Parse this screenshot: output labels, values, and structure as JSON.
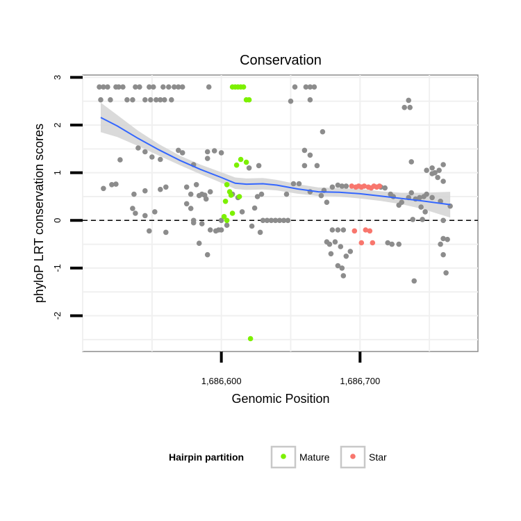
{
  "chart_data": {
    "type": "scatter",
    "title": "Conservation",
    "xlabel": "Genomic Position",
    "ylabel": "phyloP LRT conservation scores",
    "xlim": [
      1686500,
      1686785
    ],
    "ylim": [
      -2.75,
      3.05
    ],
    "x_ticks": [
      {
        "value": 1686600,
        "label": "1,686,600"
      },
      {
        "value": 1686700,
        "label": "1,686,700"
      }
    ],
    "y_ticks": [
      {
        "value": -2,
        "label": "-2"
      },
      {
        "value": -1,
        "label": "-1"
      },
      {
        "value": 0,
        "label": "0"
      },
      {
        "value": 1,
        "label": "1"
      },
      {
        "value": 2,
        "label": "2"
      },
      {
        "value": 3,
        "label": "3"
      }
    ],
    "grid": true,
    "reference_line": {
      "y": 0,
      "style": "dashed"
    },
    "legend": {
      "title": "Hairpin partition",
      "position": "bottom",
      "entries": [
        {
          "name": "Mature",
          "color": "#7cf000"
        },
        {
          "name": "Star",
          "color": "#f8766d"
        }
      ]
    },
    "colors": {
      "background_points": "#8c8c8c",
      "trend": "#3366ff",
      "band": "#d3d3d3"
    },
    "series": [
      {
        "name": "Mature",
        "color": "#7cf000",
        "points": [
          [
            1686608,
            2.8
          ],
          [
            1686610,
            2.8
          ],
          [
            1686612,
            2.8
          ],
          [
            1686614,
            2.8
          ],
          [
            1686616,
            2.8
          ],
          [
            1686618,
            2.53
          ],
          [
            1686620,
            2.53
          ],
          [
            1686611,
            1.16
          ],
          [
            1686614,
            1.28
          ],
          [
            1686618,
            1.22
          ],
          [
            1686604,
            0.75
          ],
          [
            1686606,
            0.6
          ],
          [
            1686607,
            0.53
          ],
          [
            1686603,
            0.4
          ],
          [
            1686608,
            0.15
          ],
          [
            1686613,
            0.5
          ],
          [
            1686602,
            0.08
          ],
          [
            1686604,
            0.0
          ],
          [
            1686621,
            -2.48
          ]
        ]
      },
      {
        "name": "Star",
        "color": "#f8766d",
        "points": [
          [
            1686694,
            0.72
          ],
          [
            1686697,
            0.7
          ],
          [
            1686699,
            0.72
          ],
          [
            1686701,
            0.7
          ],
          [
            1686703,
            0.72
          ],
          [
            1686706,
            0.7
          ],
          [
            1686708,
            0.68
          ],
          [
            1686710,
            0.72
          ],
          [
            1686712,
            0.7
          ],
          [
            1686714,
            0.72
          ],
          [
            1686696,
            -0.22
          ],
          [
            1686701,
            -0.47
          ],
          [
            1686704,
            -0.2
          ],
          [
            1686707,
            -0.22
          ],
          [
            1686709,
            -0.47
          ]
        ]
      },
      {
        "name": "",
        "color": "#8c8c8c",
        "points": [
          [
            1686512,
            2.8
          ],
          [
            1686515,
            2.8
          ],
          [
            1686518,
            2.8
          ],
          [
            1686524,
            2.8
          ],
          [
            1686526,
            2.8
          ],
          [
            1686529,
            2.8
          ],
          [
            1686538,
            2.8
          ],
          [
            1686541,
            2.8
          ],
          [
            1686548,
            2.8
          ],
          [
            1686551,
            2.8
          ],
          [
            1686558,
            2.8
          ],
          [
            1686562,
            2.8
          ],
          [
            1686566,
            2.8
          ],
          [
            1686569,
            2.8
          ],
          [
            1686572,
            2.8
          ],
          [
            1686591,
            2.8
          ],
          [
            1686653,
            2.8
          ],
          [
            1686661,
            2.8
          ],
          [
            1686664,
            2.8
          ],
          [
            1686667,
            2.8
          ],
          [
            1686513,
            2.53
          ],
          [
            1686520,
            2.53
          ],
          [
            1686532,
            2.53
          ],
          [
            1686536,
            2.53
          ],
          [
            1686545,
            2.53
          ],
          [
            1686549,
            2.53
          ],
          [
            1686553,
            2.53
          ],
          [
            1686556,
            2.53
          ],
          [
            1686559,
            2.53
          ],
          [
            1686564,
            2.53
          ],
          [
            1686650,
            2.5
          ],
          [
            1686664,
            2.53
          ],
          [
            1686735,
            2.52
          ],
          [
            1686732,
            2.37
          ],
          [
            1686736,
            2.37
          ],
          [
            1686673,
            1.86
          ],
          [
            1686521,
            0.75
          ],
          [
            1686524,
            0.76
          ],
          [
            1686515,
            0.67
          ],
          [
            1686527,
            1.27
          ],
          [
            1686540,
            1.52
          ],
          [
            1686545,
            1.44
          ],
          [
            1686550,
            1.33
          ],
          [
            1686556,
            1.28
          ],
          [
            1686569,
            1.47
          ],
          [
            1686572,
            1.42
          ],
          [
            1686590,
            1.44
          ],
          [
            1686595,
            1.46
          ],
          [
            1686600,
            1.42
          ],
          [
            1686580,
            1.17
          ],
          [
            1686590,
            1.3
          ],
          [
            1686620,
            1.1
          ],
          [
            1686627,
            1.15
          ],
          [
            1686660,
            1.47
          ],
          [
            1686664,
            1.37
          ],
          [
            1686660,
            1.15
          ],
          [
            1686669,
            1.15
          ],
          [
            1686737,
            1.23
          ],
          [
            1686748,
            1.05
          ],
          [
            1686752,
            1.1
          ],
          [
            1686754,
            1.0
          ],
          [
            1686757,
            1.05
          ],
          [
            1686760,
            1.17
          ],
          [
            1686752,
            0.98
          ],
          [
            1686756,
            0.9
          ],
          [
            1686760,
            0.82
          ],
          [
            1686537,
            0.55
          ],
          [
            1686545,
            0.62
          ],
          [
            1686556,
            0.65
          ],
          [
            1686560,
            0.7
          ],
          [
            1686575,
            0.7
          ],
          [
            1686578,
            0.55
          ],
          [
            1686584,
            0.52
          ],
          [
            1686586,
            0.55
          ],
          [
            1686588,
            0.53
          ],
          [
            1686582,
            0.75
          ],
          [
            1686592,
            0.6
          ],
          [
            1686608,
            0.55
          ],
          [
            1686612,
            0.48
          ],
          [
            1686647,
            0.55
          ],
          [
            1686652,
            0.77
          ],
          [
            1686656,
            0.77
          ],
          [
            1686664,
            0.6
          ],
          [
            1686674,
            0.63
          ],
          [
            1686680,
            0.7
          ],
          [
            1686684,
            0.74
          ],
          [
            1686687,
            0.72
          ],
          [
            1686690,
            0.72
          ],
          [
            1686672,
            0.52
          ],
          [
            1686676,
            0.38
          ],
          [
            1686715,
            0.7
          ],
          [
            1686718,
            0.68
          ],
          [
            1686722,
            0.55
          ],
          [
            1686724,
            0.5
          ],
          [
            1686728,
            0.32
          ],
          [
            1686730,
            0.38
          ],
          [
            1686735,
            0.48
          ],
          [
            1686737,
            0.58
          ],
          [
            1686740,
            0.45
          ],
          [
            1686743,
            0.48
          ],
          [
            1686746,
            0.5
          ],
          [
            1686748,
            0.55
          ],
          [
            1686752,
            0.48
          ],
          [
            1686758,
            0.4
          ],
          [
            1686765,
            0.3
          ],
          [
            1686536,
            0.25
          ],
          [
            1686538,
            0.15
          ],
          [
            1686545,
            0.1
          ],
          [
            1686552,
            0.18
          ],
          [
            1686575,
            0.35
          ],
          [
            1686578,
            0.25
          ],
          [
            1686580,
            0.0
          ],
          [
            1686589,
            0.45
          ],
          [
            1686600,
            0.0
          ],
          [
            1686615,
            0.18
          ],
          [
            1686624,
            0.26
          ],
          [
            1686626,
            0.5
          ],
          [
            1686629,
            0.55
          ],
          [
            1686744,
            0.28
          ],
          [
            1686747,
            0.18
          ],
          [
            1686738,
            0.02
          ],
          [
            1686745,
            0.02
          ],
          [
            1686760,
            0.0
          ],
          [
            1686630,
            0.0
          ],
          [
            1686633,
            0.0
          ],
          [
            1686636,
            0.0
          ],
          [
            1686639,
            0.0
          ],
          [
            1686642,
            0.0
          ],
          [
            1686645,
            0.0
          ],
          [
            1686648,
            0.0
          ],
          [
            1686548,
            -0.22
          ],
          [
            1686560,
            -0.25
          ],
          [
            1686580,
            -0.05
          ],
          [
            1686586,
            -0.07
          ],
          [
            1686598,
            -0.2
          ],
          [
            1686600,
            -0.2
          ],
          [
            1686604,
            -0.1
          ],
          [
            1686622,
            -0.12
          ],
          [
            1686628,
            -0.25
          ],
          [
            1686680,
            -0.2
          ],
          [
            1686684,
            -0.2
          ],
          [
            1686688,
            -0.2
          ],
          [
            1686682,
            -0.45
          ],
          [
            1686678,
            -0.5
          ],
          [
            1686686,
            -0.55
          ],
          [
            1686679,
            -0.7
          ],
          [
            1686684,
            -0.95
          ],
          [
            1686687,
            -1.0
          ],
          [
            1686690,
            -0.75
          ],
          [
            1686693,
            -0.65
          ],
          [
            1686676,
            -0.45
          ],
          [
            1686720,
            -0.47
          ],
          [
            1686723,
            -0.5
          ],
          [
            1686728,
            -0.5
          ],
          [
            1686739,
            -1.27
          ],
          [
            1686758,
            -0.5
          ],
          [
            1686760,
            -0.38
          ],
          [
            1686763,
            -0.4
          ],
          [
            1686760,
            -0.72
          ],
          [
            1686762,
            -1.1
          ],
          [
            1686584,
            -0.48
          ],
          [
            1686590,
            -0.72
          ],
          [
            1686592,
            -0.2
          ],
          [
            1686596,
            -0.22
          ],
          [
            1686688,
            -1.16
          ]
        ]
      }
    ],
    "trend": [
      [
        1686513,
        2.16
      ],
      [
        1686525,
        1.98
      ],
      [
        1686540,
        1.72
      ],
      [
        1686555,
        1.48
      ],
      [
        1686570,
        1.26
      ],
      [
        1686585,
        1.07
      ],
      [
        1686600,
        0.9
      ],
      [
        1686610,
        0.78
      ],
      [
        1686618,
        0.76
      ],
      [
        1686630,
        0.77
      ],
      [
        1686640,
        0.74
      ],
      [
        1686655,
        0.66
      ],
      [
        1686670,
        0.6
      ],
      [
        1686685,
        0.59
      ],
      [
        1686700,
        0.56
      ],
      [
        1686715,
        0.51
      ],
      [
        1686730,
        0.46
      ],
      [
        1686745,
        0.41
      ],
      [
        1686765,
        0.33
      ]
    ],
    "band_halfwidth": [
      0.31,
      0.23,
      0.16,
      0.12,
      0.1,
      0.1,
      0.11,
      0.12,
      0.12,
      0.12,
      0.11,
      0.1,
      0.09,
      0.09,
      0.1,
      0.1,
      0.12,
      0.17,
      0.27
    ]
  }
}
